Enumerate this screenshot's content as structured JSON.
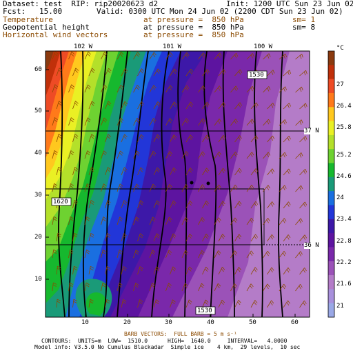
{
  "header": {
    "dataset_line": "Dataset: test  RIP: rip20020623 d2",
    "init_line": "Init: 1200 UTC Sun 23 Jun 02",
    "fcst_line": "Fcst:   15.00",
    "valid_line": "Valid: 0300 UTC Mon 24 Jun 02 (2200 CDT Sun 23 Jun 02)",
    "fields": [
      {
        "name": "Temperature",
        "pressure": "at pressure =  850 hPa",
        "smooth": "sm= 1",
        "color": "#8b4a00"
      },
      {
        "name": "Geopotential height",
        "pressure": "at pressure =  850 hPa",
        "smooth": "sm= 8",
        "color": "#000000"
      },
      {
        "name": "Horizontal wind vectors",
        "pressure": "at pressure =  850 hPa",
        "smooth": "",
        "color": "#8b4a00"
      }
    ]
  },
  "map": {
    "x_ticks": [
      "10",
      "20",
      "30",
      "40",
      "50",
      "60"
    ],
    "y_ticks": [
      "60",
      "50",
      "40",
      "30",
      "20",
      "10"
    ],
    "longitude_labels": [
      "102 W",
      "101 W",
      "100 W"
    ],
    "latitude_labels": [
      "37 N",
      "36 N"
    ],
    "contour_labels": [
      "1620",
      "1530",
      "1530"
    ]
  },
  "colorbar": {
    "unit": "°C",
    "levels": [
      "27",
      "26.4",
      "25.8",
      "25.2",
      "24.6",
      "24",
      "23.4",
      "22.8",
      "22.2",
      "21.6",
      "21"
    ],
    "colors": [
      "#8b3a0f",
      "#c0300a",
      "#ee4b25",
      "#ff7a1a",
      "#ffc81e",
      "#eaf024",
      "#b4e02a",
      "#6ed231",
      "#16b82e",
      "#1a9a78",
      "#1a6fe0",
      "#2236d8",
      "#3d18a8",
      "#5d14a0",
      "#7a28aa",
      "#9b52b8",
      "#b47cc8",
      "#a890dc",
      "#9aa8e6"
    ]
  },
  "footer": {
    "barb_line": "BARB VECTORS:  FULL BARB = 5 m s⁻¹",
    "contours_line": "CONTOURS:  UNITS=m  LOW=  1510.0      HIGH=  1640.0     INTERVAL=   4.0000",
    "model_line": "Model info: V3.5.0 No Cumulus Blackadar  Simple ice    4 km,  29 levels,  10 sec"
  }
}
